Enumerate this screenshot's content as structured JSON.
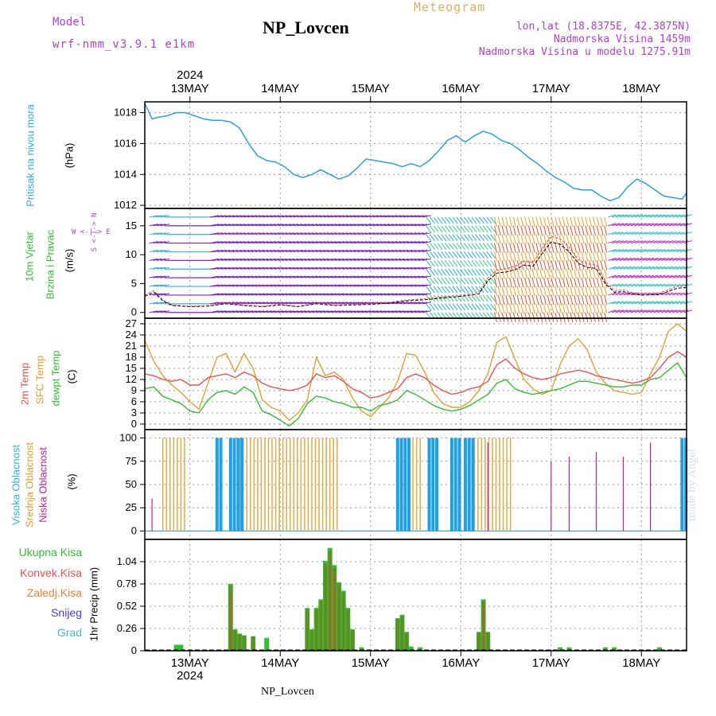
{
  "header": {
    "model_label": "Model",
    "model_name": "wrf-nmm_v3.9.1 e1km",
    "station": "NP_Lovcen",
    "meteogram": "Meteogram",
    "lonlat": "lon,lat (18.8375E, 42.3875N)",
    "altitude": "Nadmorska Visina 1459m",
    "model_altitude": "Nadmorska Visina u modelu 1275.91m"
  },
  "footer": {
    "station": "NP_Lovcen",
    "watermark": "made by Angel"
  },
  "time_axis": {
    "year": "2024",
    "days": [
      "13MAY",
      "14MAY",
      "15MAY",
      "16MAY",
      "17MAY",
      "18MAY"
    ],
    "start_day": 12.5,
    "end_day": 18.5
  },
  "panels": {
    "pressure": {
      "ylabel": "Pritisak na nivou mora",
      "unit": "(hPa)",
      "ticks": [
        "1012",
        "1014",
        "1016",
        "1018"
      ],
      "ylim": [
        1011.8,
        1018.7
      ],
      "color": "#2aa0e0"
    },
    "wind": {
      "ylabel1": "10m Vjetar",
      "ylabel2": "Brzina i Pravac",
      "unit": "(m/s)",
      "ticks": [
        "0",
        "5",
        "10",
        "15"
      ],
      "ylim": [
        -1,
        18
      ],
      "compass": "W  <-|->  E",
      "compass_v": "S <-|-> N"
    },
    "temperature": {
      "label_2m": "2m Temp",
      "label_sfc": "SFC Temp",
      "label_dew": "dewpt Temp",
      "unit": "(C)",
      "ticks": [
        "0",
        "3",
        "6",
        "9",
        "12",
        "15",
        "18",
        "21",
        "24",
        "27"
      ],
      "ylim": [
        -1.5,
        28.5
      ],
      "colors": {
        "t2m": "#f05050",
        "sfc": "#e0a030",
        "dew": "#30c030"
      }
    },
    "clouds": {
      "label_high": "Visoka Oblacnost",
      "label_mid": "Srednja Oblacnost",
      "label_low": "Niska Oblacnost",
      "unit": "(%)",
      "ticks": [
        "0",
        "25",
        "50",
        "75",
        "100"
      ],
      "colors": {
        "high": "#1ea0e8",
        "mid": "#e0b050",
        "low": "#c02090"
      }
    },
    "precip": {
      "unit": "1hr Precip (mm)",
      "ticks": [
        "0",
        "0.26",
        "0.52",
        "0.78",
        "1.04"
      ],
      "ylim": [
        0,
        1.3
      ],
      "legend": [
        {
          "label": "Ukupna Kisa",
          "color": "#30c030"
        },
        {
          "label": "Konvek.Kisa",
          "color": "#f05050"
        },
        {
          "label": "Zaledj.Kisa",
          "color": "#f08030"
        },
        {
          "label": "Snijeg",
          "color": "#4040e0"
        },
        {
          "label": "Grad",
          "color": "#40c0c0"
        }
      ]
    }
  },
  "chart_data": [
    {
      "type": "line",
      "title": "Pritisak na nivou mora",
      "ylabel": "(hPa)",
      "ylim": [
        1011.8,
        1018.7
      ],
      "series": [
        {
          "name": "Pritisak na nivou mora",
          "x": [
            12.5,
            12.58,
            12.65,
            12.75,
            12.85,
            12.95,
            13.05,
            13.15,
            13.25,
            13.35,
            13.45,
            13.55,
            13.65,
            13.75,
            13.85,
            13.95,
            14.05,
            14.15,
            14.25,
            14.35,
            14.45,
            14.55,
            14.65,
            14.75,
            14.85,
            14.95,
            15.05,
            15.15,
            15.25,
            15.35,
            15.45,
            15.55,
            15.65,
            15.75,
            15.85,
            15.95,
            16.05,
            16.15,
            16.25,
            16.35,
            16.45,
            16.55,
            16.65,
            16.75,
            16.85,
            16.95,
            17.05,
            17.15,
            17.25,
            17.35,
            17.45,
            17.55,
            17.65,
            17.75,
            17.85,
            17.95,
            18.05,
            18.15,
            18.25,
            18.35,
            18.45,
            18.5
          ],
          "values": [
            1018.6,
            1017.6,
            1017.7,
            1017.8,
            1018.0,
            1018.0,
            1017.8,
            1017.6,
            1017.5,
            1017.5,
            1017.4,
            1017.0,
            1016.0,
            1015.2,
            1014.9,
            1014.8,
            1014.5,
            1014.0,
            1013.8,
            1014.0,
            1014.3,
            1014.0,
            1013.7,
            1013.9,
            1014.4,
            1015.0,
            1014.9,
            1014.8,
            1014.7,
            1014.5,
            1014.7,
            1014.5,
            1014.9,
            1015.5,
            1016.2,
            1016.5,
            1016.1,
            1016.5,
            1016.8,
            1016.6,
            1016.2,
            1016.0,
            1015.6,
            1015.1,
            1014.7,
            1014.2,
            1013.8,
            1013.5,
            1013.1,
            1013.0,
            1013.0,
            1012.6,
            1012.3,
            1012.5,
            1013.2,
            1013.7,
            1013.4,
            1013.0,
            1012.6,
            1012.5,
            1012.4,
            1012.8
          ]
        }
      ]
    },
    {
      "type": "line",
      "title": "10m Vjetar Brzina i Pravac",
      "ylabel": "(m/s)",
      "ylim": [
        -1,
        18
      ],
      "series": [
        {
          "name": "speed",
          "x": [
            12.5,
            12.6,
            12.7,
            12.8,
            13.0,
            13.2,
            13.4,
            13.6,
            13.8,
            14.0,
            14.2,
            14.4,
            14.6,
            14.8,
            15.0,
            15.2,
            15.4,
            15.6,
            15.8,
            16.0,
            16.2,
            16.3,
            16.4,
            16.5,
            16.6,
            16.7,
            16.8,
            16.9,
            17.0,
            17.1,
            17.2,
            17.3,
            17.4,
            17.5,
            17.6,
            17.7,
            17.8,
            17.9,
            18.0,
            18.2,
            18.4,
            18.5
          ],
          "values": [
            2.8,
            3.5,
            2.0,
            1.2,
            1.0,
            1.1,
            1.5,
            1.2,
            1.0,
            1.3,
            1.0,
            1.5,
            1.2,
            1.3,
            1.4,
            1.6,
            2.0,
            2.2,
            2.5,
            2.8,
            3.2,
            5.5,
            6.8,
            7.0,
            7.4,
            8.2,
            8.0,
            10.2,
            12.2,
            11.8,
            10.5,
            8.5,
            7.8,
            7.6,
            5.0,
            3.5,
            3.6,
            3.2,
            3.0,
            3.1,
            4.2,
            4.3
          ]
        }
      ]
    },
    {
      "type": "line",
      "title": "2m Temp / SFC Temp / dewpt Temp",
      "ylabel": "(C)",
      "ylim": [
        -1.5,
        28.5
      ],
      "series": [
        {
          "name": "2m Temp",
          "x": [
            12.5,
            12.6,
            12.7,
            12.8,
            12.9,
            13.0,
            13.1,
            13.2,
            13.3,
            13.4,
            13.5,
            13.6,
            13.7,
            13.8,
            13.9,
            14.0,
            14.1,
            14.2,
            14.3,
            14.4,
            14.5,
            14.6,
            14.7,
            14.8,
            14.9,
            15.0,
            15.1,
            15.2,
            15.3,
            15.4,
            15.5,
            15.6,
            15.7,
            15.8,
            15.9,
            16.0,
            16.1,
            16.2,
            16.3,
            16.4,
            16.5,
            16.6,
            16.7,
            16.8,
            16.9,
            17.0,
            17.1,
            17.2,
            17.3,
            17.4,
            17.5,
            17.6,
            17.7,
            17.8,
            17.9,
            18.0,
            18.1,
            18.2,
            18.3,
            18.4,
            18.5
          ],
          "values": [
            13.5,
            13.0,
            12.0,
            11.5,
            12.0,
            10.5,
            10.5,
            12.5,
            13.0,
            13.5,
            12.5,
            14.0,
            13.0,
            11.0,
            10.0,
            9.5,
            9.0,
            9.5,
            10.5,
            13.5,
            12.5,
            13.0,
            11.5,
            9.5,
            8.5,
            7.0,
            7.5,
            8.5,
            9.5,
            12.5,
            13.5,
            12.5,
            10.5,
            9.0,
            8.0,
            8.5,
            9.5,
            10.0,
            11.5,
            16.0,
            17.5,
            15.0,
            13.5,
            12.5,
            12.0,
            12.5,
            13.5,
            14.0,
            14.5,
            14.0,
            13.0,
            12.5,
            12.0,
            11.5,
            11.0,
            11.5,
            12.5,
            15.0,
            18.0,
            19.5,
            18.0
          ]
        },
        {
          "name": "SFC Temp",
          "x": [
            12.5,
            12.6,
            12.7,
            12.8,
            12.9,
            13.0,
            13.1,
            13.2,
            13.3,
            13.4,
            13.5,
            13.6,
            13.7,
            13.8,
            13.9,
            14.0,
            14.1,
            14.2,
            14.3,
            14.4,
            14.5,
            14.6,
            14.7,
            14.8,
            14.9,
            15.0,
            15.1,
            15.2,
            15.3,
            15.4,
            15.5,
            15.6,
            15.7,
            15.8,
            15.9,
            16.0,
            16.1,
            16.2,
            16.3,
            16.4,
            16.5,
            16.6,
            16.7,
            16.8,
            16.9,
            17.0,
            17.1,
            17.2,
            17.3,
            17.4,
            17.5,
            17.6,
            17.7,
            17.8,
            17.9,
            18.0,
            18.1,
            18.2,
            18.3,
            18.4,
            18.5
          ],
          "values": [
            22.5,
            17.0,
            13.0,
            10.5,
            8.5,
            6.0,
            4.0,
            11.0,
            18.0,
            19.0,
            14.0,
            19.0,
            15.0,
            6.5,
            4.5,
            3.5,
            1.0,
            3.0,
            6.5,
            18.0,
            13.0,
            14.0,
            12.0,
            7.0,
            3.5,
            2.0,
            4.5,
            7.0,
            11.5,
            19.0,
            18.5,
            14.0,
            8.5,
            5.5,
            4.5,
            4.5,
            6.0,
            9.0,
            13.5,
            22.0,
            23.5,
            17.5,
            12.0,
            9.5,
            8.0,
            9.0,
            16.0,
            21.0,
            23.0,
            20.0,
            14.0,
            11.0,
            9.0,
            8.5,
            8.0,
            8.5,
            13.5,
            18.0,
            25.0,
            27.0,
            25.0
          ]
        },
        {
          "name": "dewpt Temp",
          "x": [
            12.5,
            12.6,
            12.7,
            12.8,
            12.9,
            13.0,
            13.1,
            13.2,
            13.3,
            13.4,
            13.5,
            13.6,
            13.7,
            13.8,
            13.9,
            14.0,
            14.1,
            14.2,
            14.3,
            14.4,
            14.5,
            14.6,
            14.7,
            14.8,
            14.9,
            15.0,
            15.1,
            15.2,
            15.3,
            15.4,
            15.5,
            15.6,
            15.7,
            15.8,
            15.9,
            16.0,
            16.1,
            16.2,
            16.3,
            16.4,
            16.5,
            16.6,
            16.7,
            16.8,
            16.9,
            17.0,
            17.1,
            17.2,
            17.3,
            17.4,
            17.5,
            17.6,
            17.7,
            17.8,
            17.9,
            18.0,
            18.1,
            18.2,
            18.3,
            18.4,
            18.5
          ],
          "values": [
            9.5,
            10.0,
            7.5,
            6.5,
            5.5,
            3.5,
            3.0,
            6.5,
            8.5,
            9.0,
            8.0,
            10.0,
            8.5,
            3.5,
            2.5,
            1.0,
            -0.5,
            1.5,
            5.5,
            7.5,
            7.0,
            6.0,
            5.5,
            4.5,
            4.5,
            3.5,
            5.0,
            5.5,
            6.5,
            9.0,
            8.0,
            6.5,
            5.0,
            4.0,
            3.5,
            4.0,
            5.0,
            6.5,
            8.0,
            11.0,
            12.0,
            9.5,
            8.5,
            8.0,
            8.5,
            9.0,
            9.5,
            10.5,
            11.5,
            11.5,
            11.0,
            10.5,
            10.0,
            10.0,
            10.5,
            10.5,
            12.0,
            12.5,
            14.5,
            16.5,
            12.5
          ]
        }
      ]
    },
    {
      "type": "bar",
      "title": "Oblacnost",
      "ylabel": "(%)",
      "ylim": [
        0,
        100
      ],
      "series": [
        {
          "name": "Visoka Oblacnost",
          "x_ranges": [
            [
              13.3,
              13.35
            ],
            [
              13.45,
              13.6
            ],
            [
              15.3,
              15.45
            ],
            [
              15.65,
              15.75
            ],
            [
              15.9,
              16.0
            ],
            [
              16.05,
              16.15
            ],
            [
              18.45,
              18.5
            ]
          ],
          "value": 100
        },
        {
          "name": "Srednja Oblacnost",
          "x_ranges": [
            [
              12.7,
              12.95
            ],
            [
              13.55,
              14.65
            ],
            [
              15.35,
              15.55
            ],
            [
              16.15,
              16.55
            ],
            [
              18.45,
              18.5
            ]
          ],
          "value": 100
        },
        {
          "name": "Niska Oblacnost",
          "x": [
            12.58,
            16.3,
            17.0,
            17.2,
            17.5,
            17.8,
            18.1
          ],
          "values": [
            35,
            95,
            75,
            80,
            85,
            80,
            95
          ]
        }
      ]
    },
    {
      "type": "bar",
      "title": "1hr Precip",
      "ylabel": "1hr Precip (mm)",
      "ylim": [
        0,
        1.3
      ],
      "series": [
        {
          "name": "Ukupna Kisa",
          "x": [
            12.85,
            12.9,
            13.45,
            13.5,
            13.55,
            13.6,
            13.7,
            13.85,
            14.3,
            14.35,
            14.4,
            14.45,
            14.5,
            14.55,
            14.6,
            14.65,
            14.7,
            14.75,
            14.8,
            14.9,
            15.3,
            15.35,
            15.4,
            15.45,
            15.55,
            16.2,
            16.25,
            16.3,
            17.1,
            17.2,
            17.6,
            17.7,
            18.2
          ],
          "values": [
            0.07,
            0.07,
            0.78,
            0.25,
            0.2,
            0.18,
            0.17,
            0.15,
            0.5,
            0.25,
            0.5,
            0.6,
            1.05,
            1.2,
            1.0,
            0.8,
            0.7,
            0.5,
            0.25,
            0.04,
            0.38,
            0.42,
            0.22,
            0.05,
            0.04,
            0.22,
            0.6,
            0.22,
            0.04,
            0.04,
            0.04,
            0.04,
            0.04
          ]
        },
        {
          "name": "Konvek.Kisa",
          "x": [
            13.45,
            14.55,
            14.6,
            16.25
          ],
          "values": [
            0.65,
            1.0,
            0.9,
            0.55
          ]
        }
      ]
    }
  ]
}
